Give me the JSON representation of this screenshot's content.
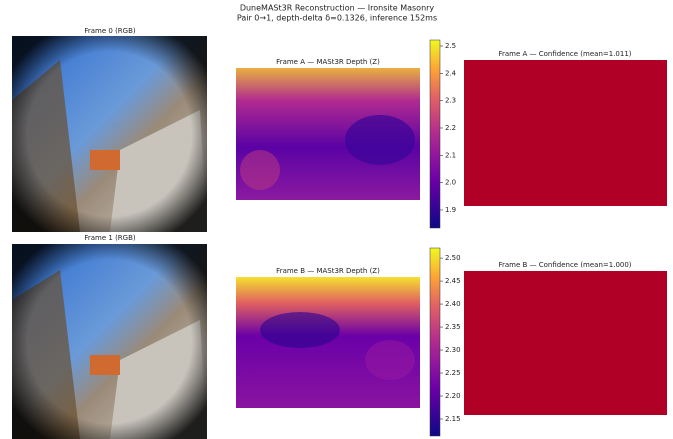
{
  "figure": {
    "title": "DuneMASt3R Reconstruction — Ironsite Masonry",
    "subtitle": "Pair 0→1, depth-delta δ=0.1326, inference 152ms"
  },
  "panels": [
    {
      "title": "Frame 0 (RGB)"
    },
    {
      "title": "Frame A — MASt3R Depth (Z)"
    },
    {
      "title": "Frame A — Confidence (mean=1.011)"
    },
    {
      "title": "Frame 1 (RGB)"
    },
    {
      "title": "Frame B — MASt3R Depth (Z)"
    },
    {
      "title": "Frame B — Confidence (mean=1.000)"
    }
  ],
  "colorbars": [
    {
      "lim": [
        1.834,
        2.522
      ],
      "ticks": [
        1.9,
        {
          "value": 2,
          "label": "2.0"
        },
        2.1,
        2.2,
        2.3,
        2.4,
        2.5
      ]
    },
    {
      "lim": [
        2.113,
        2.522
      ],
      "ticks": [
        2.15,
        {
          "value": 2.2,
          "label": "2.20"
        },
        2.25,
        {
          "value": 2.3,
          "label": "2.30"
        },
        2.35,
        {
          "value": 2.4,
          "label": "2.40"
        },
        2.45,
        {
          "value": 2.5,
          "label": "2.50"
        }
      ]
    }
  ]
}
